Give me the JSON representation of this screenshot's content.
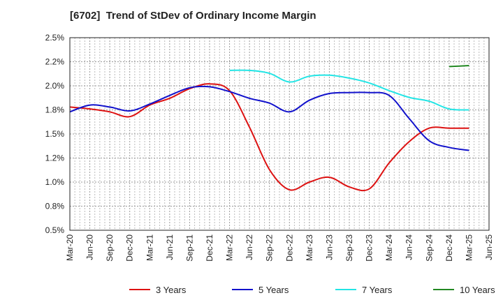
{
  "chart_data": {
    "type": "line",
    "title": "[6702]  Trend of StDev of Ordinary Income Margin",
    "xlabel": "",
    "ylabel": "",
    "ylim": [
      0.5,
      2.5
    ],
    "y_ticks": [
      "0.5%",
      "0.8%",
      "1.0%",
      "1.2%",
      "1.5%",
      "1.8%",
      "2.0%",
      "2.2%",
      "2.5%"
    ],
    "y_tick_values": [
      0.5,
      0.75,
      1.0,
      1.25,
      1.5,
      1.75,
      2.0,
      2.25,
      2.5
    ],
    "x_ticks": [
      "Mar-20",
      "Jun-20",
      "Sep-20",
      "Dec-20",
      "Mar-21",
      "Jun-21",
      "Sep-21",
      "Dec-21",
      "Mar-22",
      "Jun-22",
      "Sep-22",
      "Dec-22",
      "Mar-23",
      "Jun-23",
      "Sep-23",
      "Dec-23",
      "Mar-24",
      "Jun-24",
      "Sep-24",
      "Dec-24",
      "Mar-25",
      "Jun-25"
    ],
    "grid": true,
    "legend_position": "bottom",
    "series": [
      {
        "name": "3 Years",
        "color": "#dd1111",
        "x": [
          "Mar-20",
          "Jun-20",
          "Sep-20",
          "Dec-20",
          "Mar-21",
          "Jun-21",
          "Sep-21",
          "Dec-21",
          "Mar-22",
          "Jun-22",
          "Sep-22",
          "Dec-22",
          "Mar-23",
          "Jun-23",
          "Sep-23",
          "Dec-23",
          "Mar-24",
          "Jun-24",
          "Sep-24",
          "Dec-24",
          "Mar-25"
        ],
        "values": [
          1.78,
          1.76,
          1.73,
          1.68,
          1.8,
          1.87,
          1.97,
          2.02,
          1.95,
          1.57,
          1.13,
          0.92,
          1.0,
          1.05,
          0.95,
          0.93,
          1.2,
          1.42,
          1.56,
          1.56,
          1.56
        ]
      },
      {
        "name": "5 Years",
        "color": "#1111cc",
        "x": [
          "Mar-20",
          "Jun-20",
          "Sep-20",
          "Dec-20",
          "Mar-21",
          "Jun-21",
          "Sep-21",
          "Dec-21",
          "Mar-22",
          "Jun-22",
          "Sep-22",
          "Dec-22",
          "Mar-23",
          "Jun-23",
          "Sep-23",
          "Dec-23",
          "Mar-24",
          "Jun-24",
          "Sep-24",
          "Dec-24",
          "Mar-25"
        ],
        "values": [
          1.73,
          1.8,
          1.78,
          1.74,
          1.81,
          1.9,
          1.98,
          1.99,
          1.94,
          1.87,
          1.82,
          1.73,
          1.85,
          1.92,
          1.93,
          1.93,
          1.9,
          1.66,
          1.43,
          1.36,
          1.33
        ]
      },
      {
        "name": "7 Years",
        "color": "#22e5e5",
        "x": [
          "Mar-22",
          "Jun-22",
          "Sep-22",
          "Dec-22",
          "Mar-23",
          "Jun-23",
          "Sep-23",
          "Dec-23",
          "Mar-24",
          "Jun-24",
          "Sep-24",
          "Dec-24",
          "Mar-25"
        ],
        "values": [
          2.16,
          2.16,
          2.13,
          2.04,
          2.1,
          2.11,
          2.08,
          2.03,
          1.95,
          1.88,
          1.84,
          1.76,
          1.75
        ]
      },
      {
        "name": "10 Years",
        "color": "#228822",
        "x": [
          "Dec-24",
          "Mar-25"
        ],
        "values": [
          2.2,
          2.21
        ]
      }
    ]
  }
}
